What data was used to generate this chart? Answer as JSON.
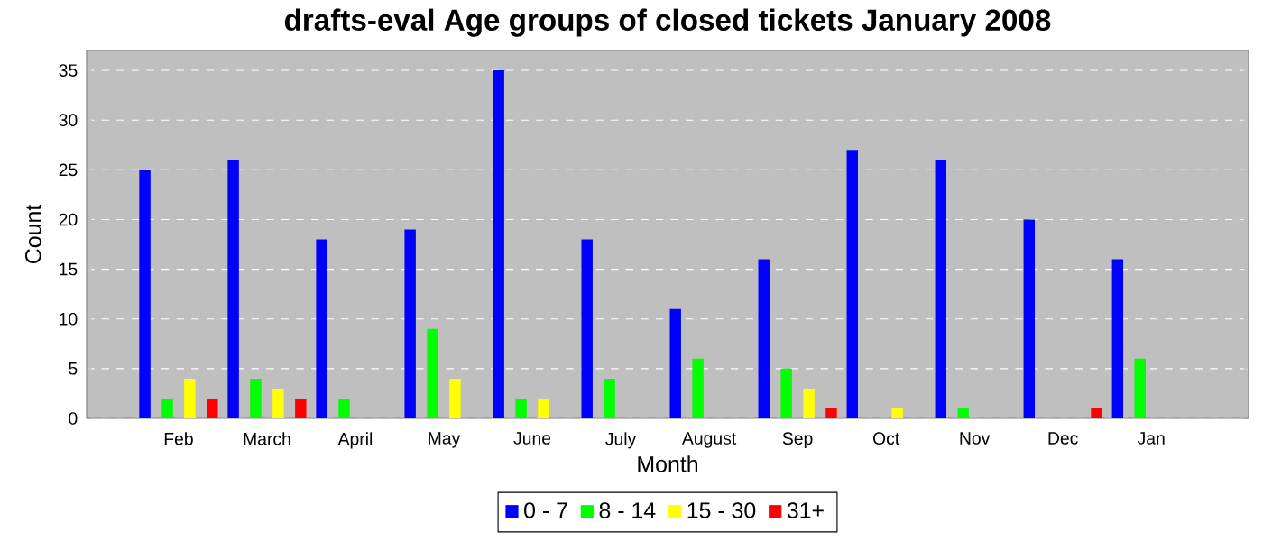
{
  "chart_data": {
    "type": "bar",
    "title": "drafts-eval Age groups of closed tickets January 2008",
    "xlabel": "Month",
    "ylabel": "Count",
    "categories": [
      "Feb",
      "March",
      "April",
      "May",
      "June",
      "July",
      "August",
      "Sep",
      "Oct",
      "Nov",
      "Dec",
      "Jan"
    ],
    "series": [
      {
        "name": "0 - 7",
        "color": "#0000ff",
        "values": [
          25,
          26,
          18,
          19,
          35,
          18,
          11,
          16,
          27,
          26,
          20,
          16
        ]
      },
      {
        "name": "8 - 14",
        "color": "#00ff00",
        "values": [
          2,
          4,
          2,
          9,
          2,
          4,
          6,
          5,
          0,
          1,
          0,
          6
        ]
      },
      {
        "name": "15 - 30",
        "color": "#ffff00",
        "values": [
          4,
          3,
          0,
          4,
          2,
          0,
          0,
          3,
          1,
          0,
          0,
          0
        ]
      },
      {
        "name": "31+",
        "color": "#ff0000",
        "values": [
          2,
          2,
          0,
          0,
          0,
          0,
          0,
          1,
          0,
          0,
          1,
          0
        ]
      }
    ],
    "ylim": [
      0,
      37
    ],
    "yticks": [
      0,
      5,
      10,
      15,
      20,
      25,
      30,
      35
    ],
    "grid": "y",
    "legend": "bottom"
  }
}
